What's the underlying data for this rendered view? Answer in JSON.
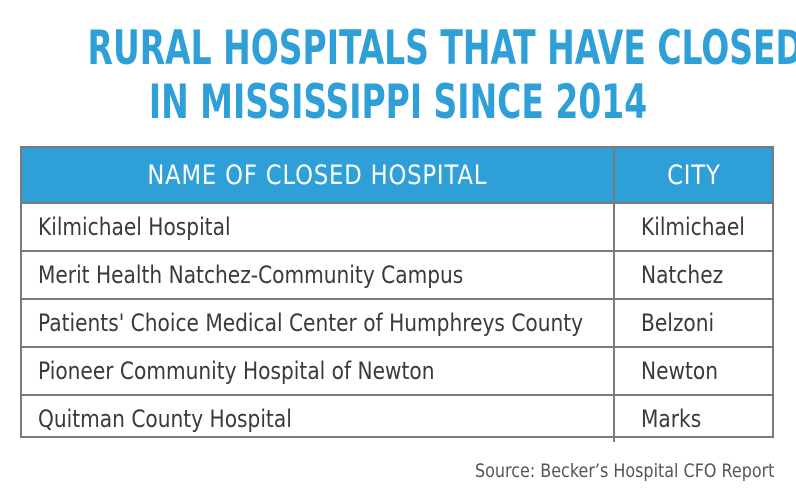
{
  "title": {
    "line1": "RURAL HOSPITALS THAT HAVE CLOSED",
    "line2": "IN MISSISSIPPI SINCE 2014"
  },
  "table": {
    "headers": [
      "NAME OF CLOSED HOSPITAL",
      "CITY"
    ],
    "rows": [
      {
        "name": "Kilmichael Hospital",
        "city": "Kilmichael"
      },
      {
        "name": "Merit Health Natchez-Community Campus",
        "city": "Natchez"
      },
      {
        "name": "Patients' Choice Medical Center of Humphreys County",
        "city": "Belzoni"
      },
      {
        "name": "Pioneer Community Hospital of Newton",
        "city": "Newton"
      },
      {
        "name": "Quitman County Hospital",
        "city": "Marks"
      }
    ]
  },
  "colors": {
    "accent": "#2f9fd8",
    "border": "#7a7a7a",
    "text": "#3a3a3a"
  },
  "source": "Source: Becker’s Hospital CFO Report"
}
